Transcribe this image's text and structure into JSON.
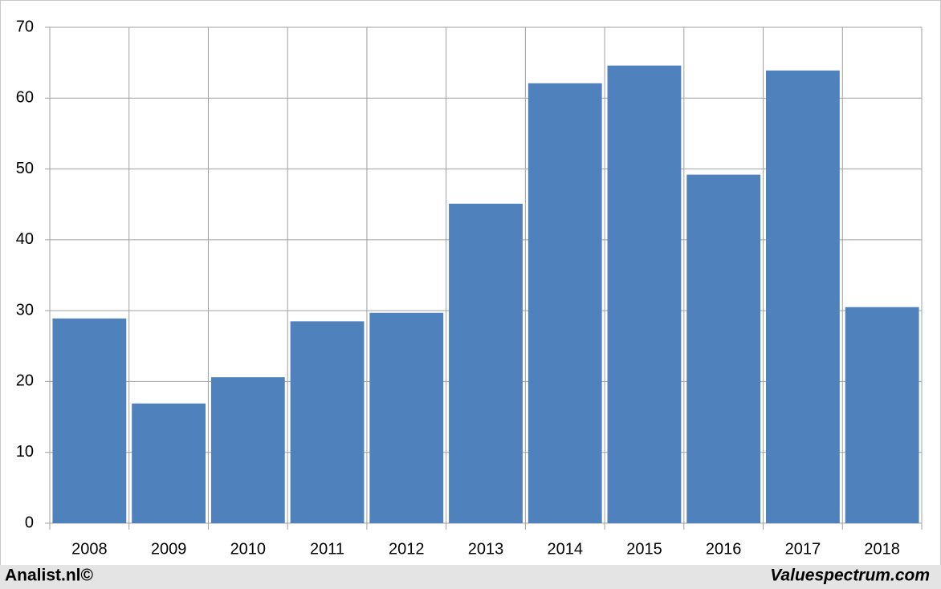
{
  "chart_data": {
    "type": "bar",
    "categories": [
      "2008",
      "2009",
      "2010",
      "2011",
      "2012",
      "2013",
      "2014",
      "2015",
      "2016",
      "2017",
      "2018"
    ],
    "values": [
      28.9,
      16.9,
      20.6,
      28.5,
      29.7,
      45.1,
      62.1,
      64.6,
      49.2,
      63.9,
      30.5
    ],
    "color": "#4f81bd",
    "ylim": [
      0,
      70
    ],
    "yticks": [
      0,
      10,
      20,
      30,
      40,
      50,
      60,
      70
    ],
    "grid": true,
    "annotations": [
      "Analist.nl©",
      "Valuespectrum.com"
    ]
  }
}
